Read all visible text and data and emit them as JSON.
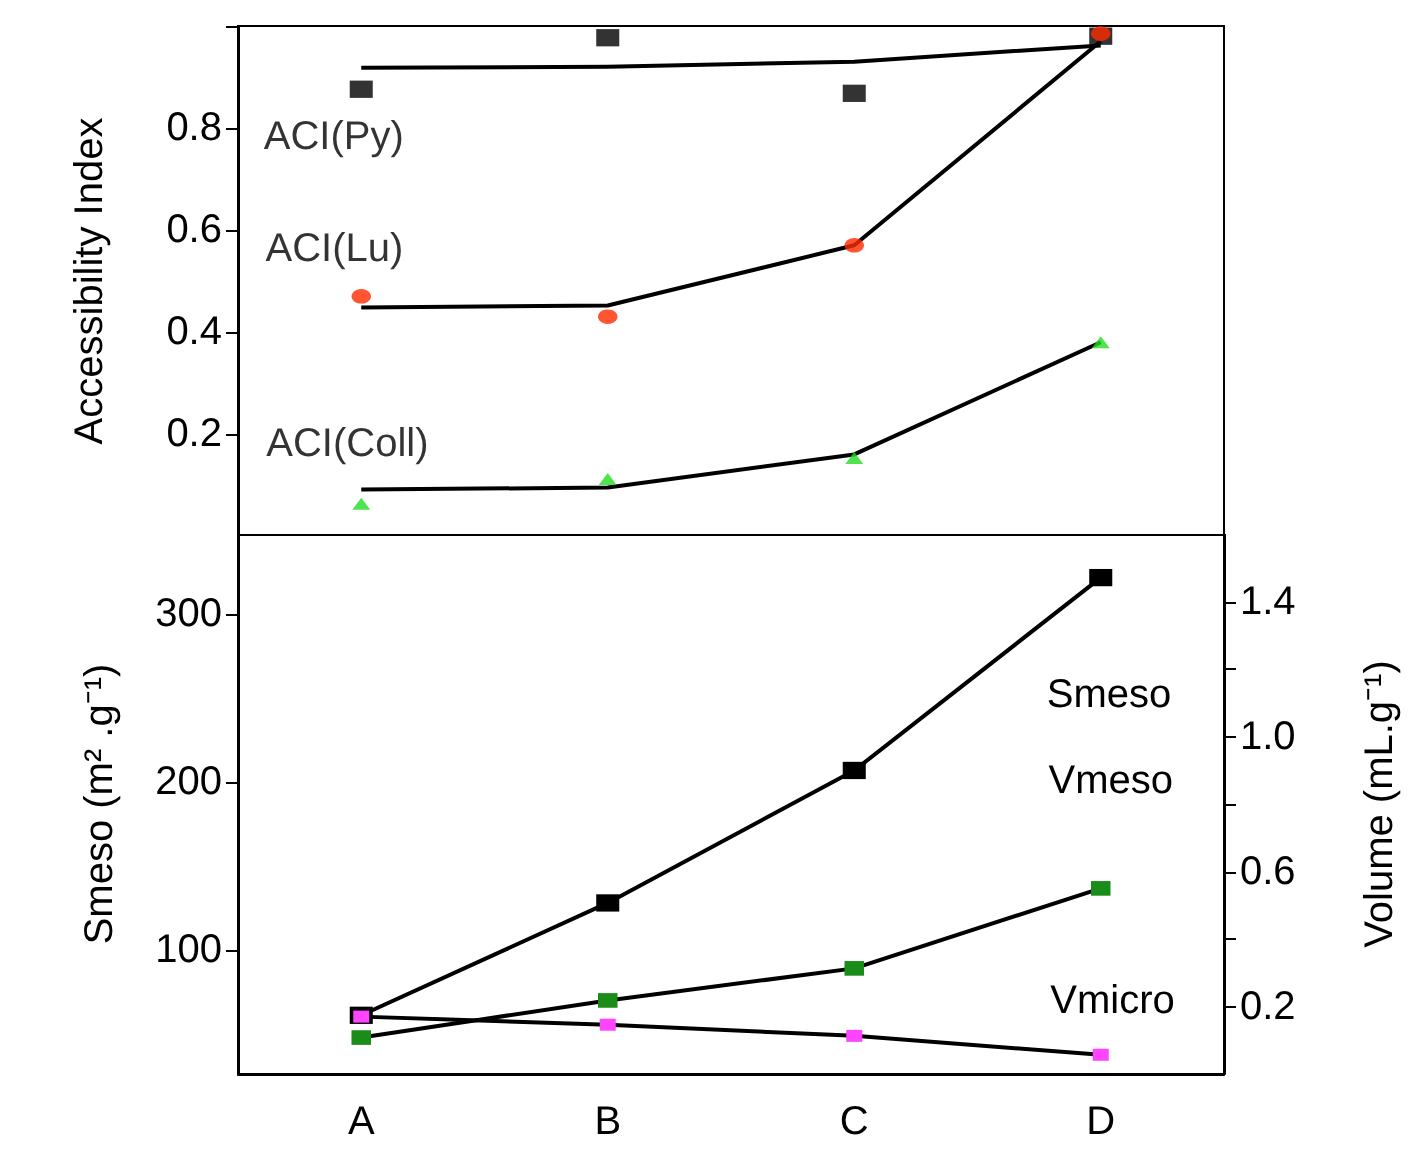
{
  "chart_data": [
    {
      "type": "scatter",
      "ylabel": "Accessibility Index",
      "categories": [
        null,
        null,
        null,
        null
      ],
      "ylim": [
        0,
        1
      ],
      "yticks": [
        0.2,
        0.4,
        0.6,
        0.8,
        {
          "value": 1,
          "label": null
        }
      ],
      "tick_labels": "y",
      "legend": false,
      "grid": false,
      "series": [
        {
          "type": "line",
          "color": "#000000",
          "marker": "none",
          "values": [
            0.918,
            0.92,
            0.93,
            0.962
          ]
        },
        {
          "type": "line",
          "color": "#000000",
          "marker": "none",
          "values": [
            0.448,
            0.452,
            0.57,
            0.97
          ]
        },
        {
          "type": "line",
          "color": "#000000",
          "marker": "none",
          "values": [
            0.091,
            0.095,
            0.16,
            0.38
          ]
        },
        {
          "name": "ACI(Py)",
          "color": "#000000",
          "marker": "square",
          "values": [
            0.876,
            0.977,
            0.868,
            0.98
          ]
        },
        {
          "name": "ACI(Lu)",
          "color": "#ff2a00",
          "marker": "circle",
          "values": [
            0.47,
            0.43,
            0.57,
            0.985
          ]
        },
        {
          "name": "ACI(Coll)",
          "color": "#22dd22",
          "marker": "triangle",
          "values": [
            0.063,
            0.112,
            0.153,
            0.38
          ]
        }
      ]
    },
    {
      "type": "line",
      "ylabel": "Smeso (m² .g⁻¹)",
      "y2label": "Volume (mL.g⁻¹)",
      "categories": [
        "A",
        "B",
        "C",
        "D"
      ],
      "ylim": [
        26,
        348
      ],
      "yticks": [
        100,
        200,
        300
      ],
      "y2lim": [
        0,
        1.6
      ],
      "y2ticks": [
        {
          "value": 0.2,
          "label": "0.2"
        },
        {
          "value": 0.4,
          "label": null
        },
        {
          "value": 0.6,
          "label": "0.6"
        },
        {
          "value": 0.8,
          "label": null
        },
        {
          "value": 1,
          "label": "1.0"
        },
        {
          "value": 1.2,
          "label": null
        },
        {
          "value": 1.4,
          "label": "1.4"
        }
      ],
      "legend": false,
      "grid": false,
      "marker": "square",
      "series": [
        {
          "name": "Smeso",
          "color": "#000000",
          "values": [
            61,
            128,
            207,
            322
          ]
        },
        {
          "name": "Vmeso",
          "color": "#1a8c1a",
          "axis": "y2",
          "values": [
            0.108,
            0.218,
            0.313,
            0.55
          ]
        },
        {
          "name": "Vmicro",
          "color": "#ff44ff",
          "axis": "y2",
          "values": [
            0.17,
            0.146,
            0.113,
            0.057
          ]
        }
      ]
    }
  ]
}
